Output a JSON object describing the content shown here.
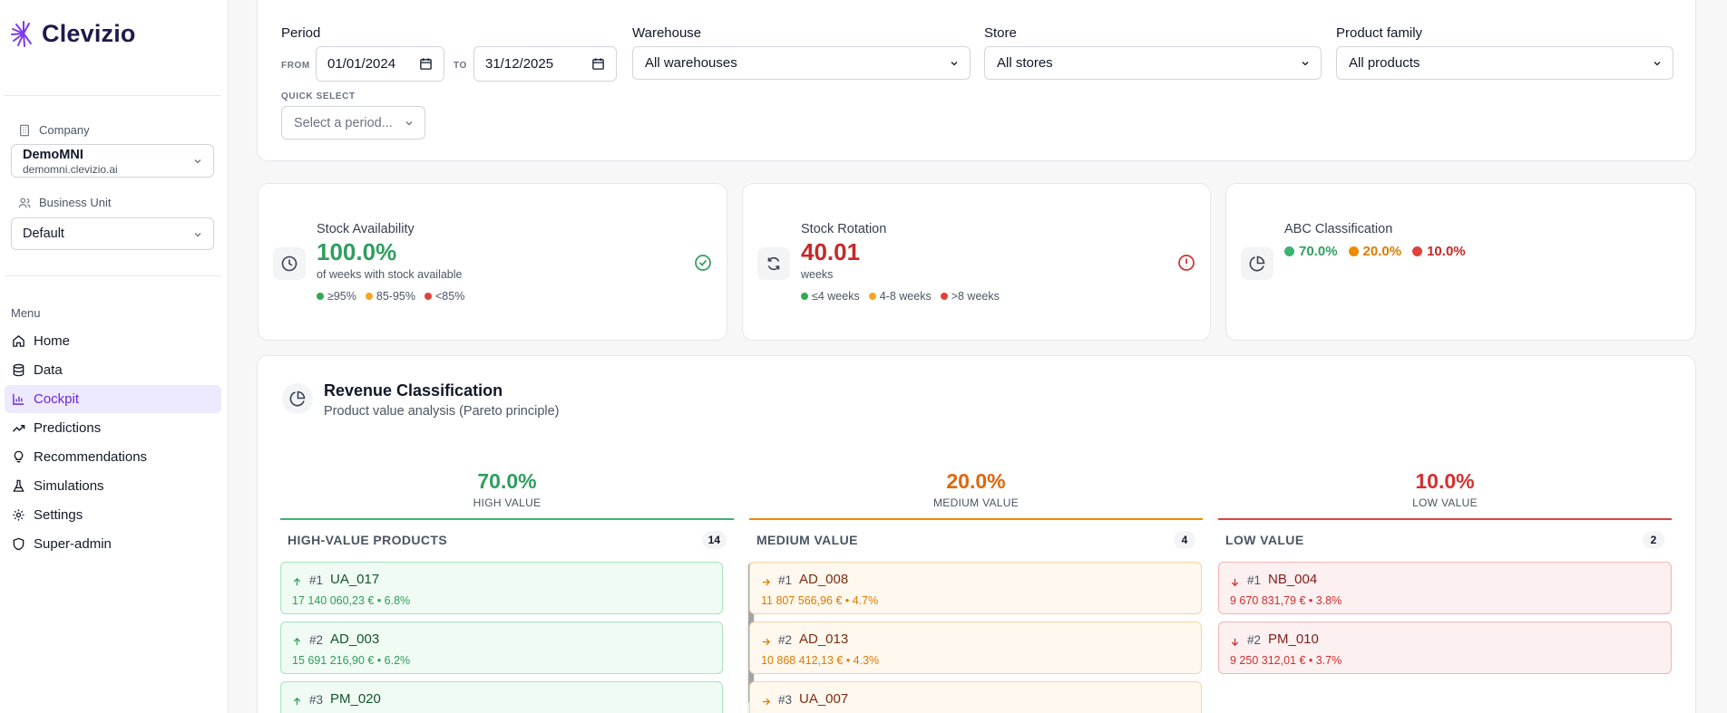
{
  "brand": {
    "name": "Clevizio"
  },
  "sidebar": {
    "company_label": "Company",
    "company_name": "DemoMNI",
    "company_domain": "demomni.clevizio.ai",
    "bu_label": "Business Unit",
    "bu_value": "Default",
    "menu_title": "Menu",
    "items": [
      {
        "label": "Home",
        "icon": "home-icon"
      },
      {
        "label": "Data",
        "icon": "database-icon"
      },
      {
        "label": "Cockpit",
        "icon": "bar-chart-icon",
        "active": true
      },
      {
        "label": "Predictions",
        "icon": "trending-up-icon"
      },
      {
        "label": "Recommendations",
        "icon": "lightbulb-icon"
      },
      {
        "label": "Simulations",
        "icon": "flask-icon"
      },
      {
        "label": "Settings",
        "icon": "gear-icon"
      },
      {
        "label": "Super-admin",
        "icon": "shield-icon"
      }
    ]
  },
  "filters": {
    "period_label": "Period",
    "from_label": "FROM",
    "from_value": "01/01/2024",
    "to_label": "TO",
    "to_value": "31/12/2025",
    "quick_label": "QUICK SELECT",
    "quick_placeholder": "Select a period...",
    "warehouse_label": "Warehouse",
    "warehouse_value": "All warehouses",
    "store_label": "Store",
    "store_value": "All stores",
    "family_label": "Product family",
    "family_value": "All products"
  },
  "kpis": {
    "availability": {
      "title": "Stock Availability",
      "value": "100.0%",
      "sub": "of weeks with stock available",
      "legend": [
        "≥95%",
        "85-95%",
        "<85%"
      ]
    },
    "rotation": {
      "title": "Stock Rotation",
      "value": "40.01",
      "sub": "weeks",
      "legend": [
        "≤4 weeks",
        "4-8 weeks",
        ">8 weeks"
      ]
    },
    "abc": {
      "title": "ABC Classification",
      "values": [
        "70.0%",
        "20.0%",
        "10.0%"
      ]
    }
  },
  "revenue": {
    "title": "Revenue Classification",
    "subtitle": "Product value analysis (Pareto principle)",
    "columns": [
      {
        "pct": "70.0%",
        "label": "HIGH VALUE",
        "heading": "HIGH-VALUE PRODUCTS",
        "count": "14",
        "items": [
          {
            "rank": "#1",
            "code": "UA_017",
            "value": "17 140 060,23 € • 6.8%"
          },
          {
            "rank": "#2",
            "code": "AD_003",
            "value": "15 691 216,90 € • 6.2%"
          },
          {
            "rank": "#3",
            "code": "PM_020",
            "value": ""
          }
        ]
      },
      {
        "pct": "20.0%",
        "label": "MEDIUM VALUE",
        "heading": "MEDIUM VALUE",
        "count": "4",
        "items": [
          {
            "rank": "#1",
            "code": "AD_008",
            "value": "11 807 566,96 € • 4.7%"
          },
          {
            "rank": "#2",
            "code": "AD_013",
            "value": "10 868 412,13 € • 4.3%"
          },
          {
            "rank": "#3",
            "code": "UA_007",
            "value": ""
          }
        ]
      },
      {
        "pct": "10.0%",
        "label": "LOW VALUE",
        "heading": "LOW VALUE",
        "count": "2",
        "items": [
          {
            "rank": "#1",
            "code": "NB_004",
            "value": "9 670 831,79 € • 3.8%"
          },
          {
            "rank": "#2",
            "code": "PM_010",
            "value": "9 250 312,01 € • 3.7%"
          }
        ]
      }
    ]
  }
}
